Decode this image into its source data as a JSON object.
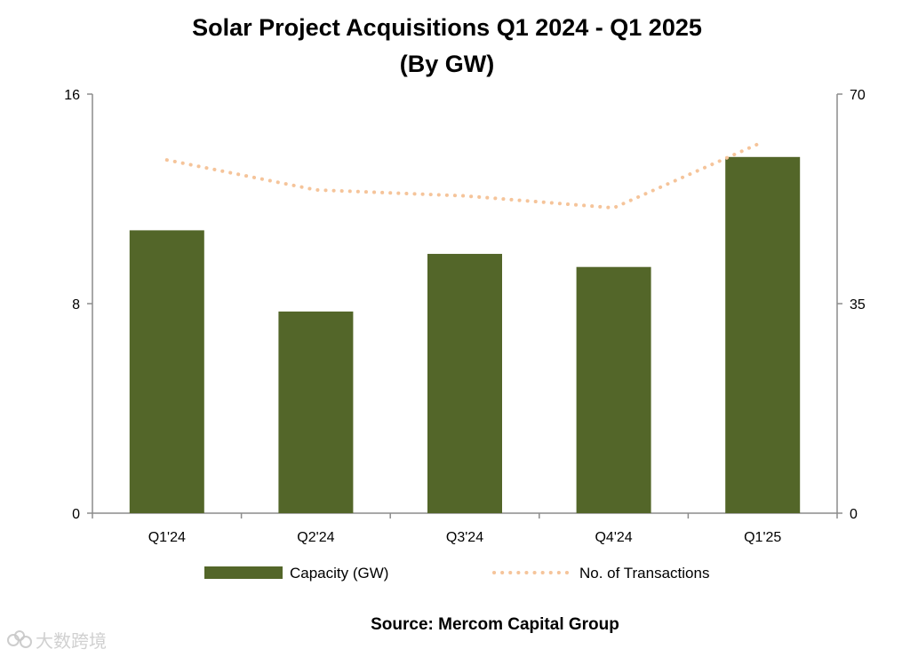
{
  "chart_data": {
    "type": "bar",
    "title_line1": "Solar Project Acquisitions Q1 2024 - Q1 2025",
    "title_line2": "(By GW)",
    "categories": [
      "Q1'24",
      "Q2'24",
      "Q3'24",
      "Q4'24",
      "Q1'25"
    ],
    "series": [
      {
        "name": "Capacity (GW)",
        "kind": "bar",
        "axis": "left",
        "color": "#536629",
        "values": [
          10.8,
          7.7,
          9.9,
          9.4,
          13.6
        ]
      },
      {
        "name": "No. of Transactions",
        "kind": "line-dotted",
        "axis": "right",
        "color": "#F5C49A",
        "values": [
          59,
          54,
          53,
          51,
          62
        ]
      }
    ],
    "y_left": {
      "min": 0,
      "max": 16,
      "ticks": [
        "0",
        "8",
        "16"
      ]
    },
    "y_right": {
      "min": 0,
      "max": 70,
      "ticks": [
        "0",
        "35",
        "70"
      ]
    },
    "legend_position": "bottom-center",
    "source": "Source: Mercom Capital Group"
  },
  "watermark": {
    "text": "大数跨境",
    "icon": "brand-logo-icon"
  }
}
